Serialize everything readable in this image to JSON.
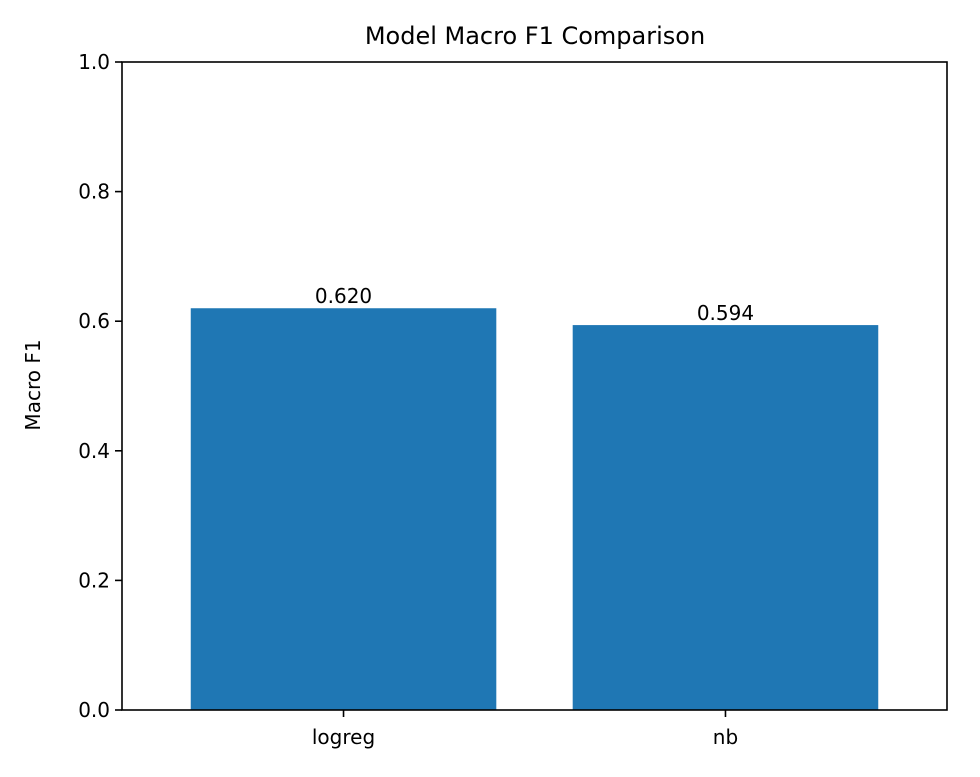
{
  "chart_data": {
    "type": "bar",
    "title": "Model Macro F1 Comparison",
    "xlabel": "",
    "ylabel": "Macro F1",
    "categories": [
      "logreg",
      "nb"
    ],
    "values": [
      0.62,
      0.594
    ],
    "data_labels": [
      "0.620",
      "0.594"
    ],
    "ylim": [
      0,
      1.0
    ],
    "y_ticks": [
      0.0,
      0.2,
      0.4,
      0.6,
      0.8,
      1.0
    ],
    "y_tick_labels": [
      "0.0",
      "0.2",
      "0.4",
      "0.6",
      "0.8",
      "1.0"
    ],
    "grid": false,
    "legend": "none",
    "bar_color": "#1f77b4"
  }
}
